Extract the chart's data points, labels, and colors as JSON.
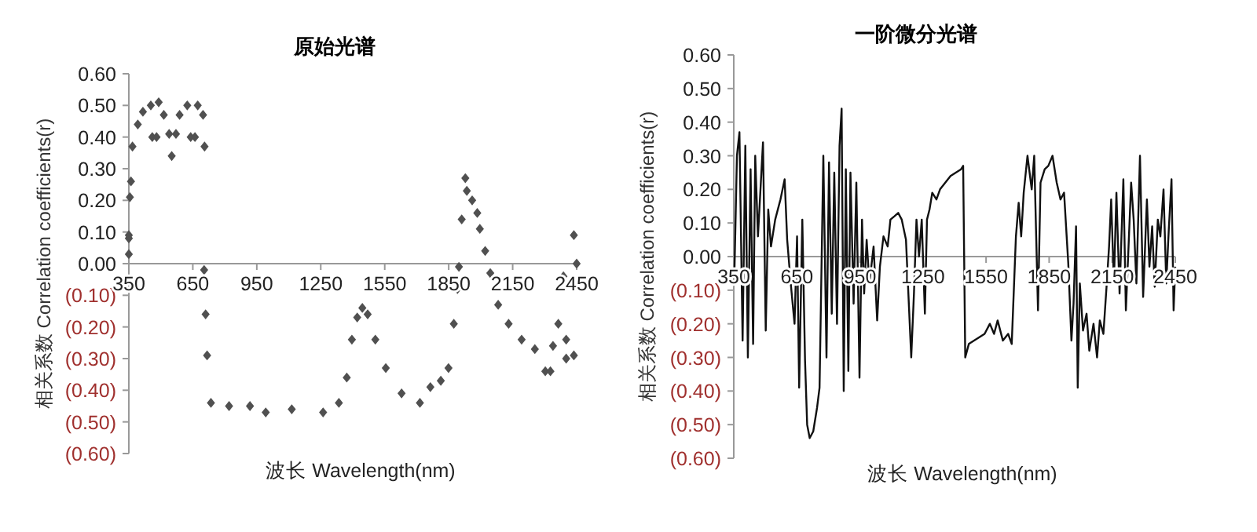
{
  "chart_data": [
    {
      "type": "scatter",
      "title": "原始光谱",
      "xlabel": "波长  Wavelength(nm)",
      "ylabel": "相关系数 Correlation coefficients(r)",
      "marker": "diamond",
      "xlim": [
        350,
        2450
      ],
      "xticks": [
        350,
        650,
        950,
        1250,
        1550,
        1850,
        2150,
        2450
      ],
      "ylim": [
        -0.6,
        0.6
      ],
      "yticks": [
        {
          "value": 0.6,
          "label": "0.60"
        },
        {
          "value": 0.5,
          "label": "0.50"
        },
        {
          "value": 0.4,
          "label": "0.40"
        },
        {
          "value": 0.3,
          "label": "0.30"
        },
        {
          "value": 0.2,
          "label": "0.20"
        },
        {
          "value": 0.1,
          "label": "0.10"
        },
        {
          "value": 0,
          "label": "0.00"
        },
        {
          "value": -0.1,
          "label": "(0.10)"
        },
        {
          "value": -0.2,
          "label": "(0.20)"
        },
        {
          "value": -0.3,
          "label": "(0.30)"
        },
        {
          "value": -0.4,
          "label": "(0.40)"
        },
        {
          "value": -0.5,
          "label": "(0.50)"
        },
        {
          "value": -0.6,
          "label": "(0.60)"
        }
      ],
      "series": [
        {
          "color": "#505050",
          "x": [
            350,
            350,
            350,
            355,
            360,
            367,
            392,
            416,
            453,
            490,
            514,
            539,
            551,
            571,
            588,
            624,
            673,
            698,
            705,
            460,
            480,
            640,
            660,
            703,
            710,
            717,
            735,
            820,
            918,
            992,
            1114,
            1261,
            1335,
            1372,
            1396,
            1421,
            1445,
            1470,
            1506,
            1555,
            1629,
            1715,
            1764,
            1813,
            1849,
            1874,
            1891,
            1898,
            1911,
            1928,
            1935,
            1960,
            1984,
            1996,
            2021,
            2045,
            2082,
            2131,
            2192,
            2254,
            2303,
            2327,
            2339,
            2364,
            2388,
            2401,
            2437,
            2450,
            2437,
            2401
          ],
          "values": [
            0.08,
            0.09,
            0.03,
            0.21,
            0.26,
            0.37,
            0.44,
            0.48,
            0.5,
            0.51,
            0.47,
            0.41,
            0.34,
            0.41,
            0.47,
            0.5,
            0.5,
            0.47,
            0.37,
            0.4,
            0.4,
            0.4,
            0.4,
            -0.02,
            -0.16,
            -0.29,
            -0.44,
            -0.45,
            -0.45,
            -0.47,
            -0.46,
            -0.47,
            -0.44,
            -0.36,
            -0.24,
            -0.17,
            -0.14,
            -0.16,
            -0.24,
            -0.33,
            -0.41,
            -0.44,
            -0.39,
            -0.37,
            -0.33,
            -0.19,
            -0.08,
            -0.01,
            0.14,
            0.27,
            0.23,
            0.2,
            0.16,
            0.11,
            0.04,
            -0.03,
            -0.13,
            -0.19,
            -0.24,
            -0.27,
            -0.34,
            -0.34,
            -0.26,
            -0.19,
            -0.04,
            -0.24,
            0.09,
            0.0,
            -0.29,
            -0.3
          ]
        }
      ]
    },
    {
      "type": "line",
      "title": "一阶微分光谱",
      "xlabel": "波长 Wavelength(nm)",
      "ylabel": "相关系数 Correlation coefficients(r)",
      "line_style": "solid",
      "xlim": [
        350,
        2450
      ],
      "xticks": [
        350,
        650,
        950,
        1250,
        1550,
        1850,
        2150,
        2450
      ],
      "ylim": [
        -0.6,
        0.6
      ],
      "yticks": [
        {
          "value": 0.6,
          "label": "0.60"
        },
        {
          "value": 0.5,
          "label": "0.50"
        },
        {
          "value": 0.4,
          "label": "0.40"
        },
        {
          "value": 0.3,
          "label": "0.30"
        },
        {
          "value": 0.2,
          "label": "0.20"
        },
        {
          "value": 0.1,
          "label": "0.10"
        },
        {
          "value": 0,
          "label": "0.00"
        },
        {
          "value": -0.1,
          "label": "(0.10)"
        },
        {
          "value": -0.2,
          "label": "(0.20)"
        },
        {
          "value": -0.3,
          "label": "(0.30)"
        },
        {
          "value": -0.4,
          "label": "(0.40)"
        },
        {
          "value": -0.5,
          "label": "(0.50)"
        },
        {
          "value": -0.6,
          "label": "(0.60)"
        }
      ],
      "series": [
        {
          "color": "#111111",
          "x": [
            352,
            365,
            377,
            392,
            405,
            417,
            430,
            442,
            452,
            465,
            477,
            489,
            502,
            514,
            527,
            547,
            572,
            592,
            604,
            621,
            639,
            651,
            661,
            676,
            689,
            699,
            711,
            728,
            746,
            758,
            776,
            791,
            803,
            816,
            828,
            841,
            853,
            863,
            873,
            883,
            895,
            905,
            920,
            933,
            948,
            960,
            970,
            982,
            995,
            1015,
            1032,
            1045,
            1062,
            1082,
            1095,
            1114,
            1132,
            1149,
            1169,
            1184,
            1194,
            1207,
            1219,
            1231,
            1244,
            1259,
            1269,
            1281,
            1294,
            1314,
            1331,
            1356,
            1381,
            1406,
            1431,
            1441,
            1451,
            1468,
            1493,
            1518,
            1543,
            1568,
            1588,
            1605,
            1630,
            1655,
            1672,
            1692,
            1705,
            1717,
            1729,
            1747,
            1767,
            1779,
            1797,
            1809,
            1829,
            1846,
            1866,
            1886,
            1904,
            1921,
            1941,
            1956,
            1966,
            1978,
            1986,
            1996,
            2011,
            2028,
            2041,
            2061,
            2078,
            2091,
            2108,
            2123,
            2135,
            2145,
            2158,
            2170,
            2185,
            2203,
            2215,
            2227,
            2240,
            2252,
            2265,
            2282,
            2297,
            2315,
            2327,
            2340,
            2352,
            2367,
            2379,
            2394,
            2407,
            2419,
            2432,
            2442,
            2450
          ],
          "values": [
            -0.08,
            0.3,
            0.37,
            -0.25,
            0.33,
            -0.3,
            0.26,
            -0.26,
            0.3,
            0.06,
            0.2,
            0.34,
            -0.22,
            0.14,
            0.03,
            0.11,
            0.17,
            0.23,
            0.05,
            -0.08,
            -0.2,
            0.06,
            -0.39,
            0.11,
            -0.31,
            -0.5,
            -0.54,
            -0.52,
            -0.45,
            -0.39,
            0.3,
            -0.3,
            0.28,
            -0.17,
            0.25,
            -0.2,
            0.33,
            0.44,
            -0.4,
            0.26,
            -0.34,
            0.25,
            -0.14,
            0.22,
            -0.36,
            0.11,
            -0.11,
            0.05,
            -0.08,
            0.03,
            -0.19,
            -0.03,
            0.06,
            0.03,
            0.11,
            0.12,
            0.13,
            0.11,
            0.05,
            -0.16,
            -0.3,
            -0.11,
            0.11,
            0.0,
            0.11,
            -0.17,
            0.11,
            0.14,
            0.19,
            0.17,
            0.2,
            0.22,
            0.24,
            0.25,
            0.26,
            0.27,
            -0.3,
            -0.26,
            -0.25,
            -0.24,
            -0.23,
            -0.2,
            -0.23,
            -0.19,
            -0.25,
            -0.23,
            -0.26,
            0.06,
            0.16,
            0.06,
            0.19,
            0.3,
            0.2,
            0.3,
            -0.16,
            0.22,
            0.26,
            0.27,
            0.3,
            0.22,
            0.17,
            0.19,
            -0.02,
            -0.25,
            -0.14,
            0.09,
            -0.39,
            -0.08,
            -0.22,
            -0.17,
            -0.28,
            -0.2,
            -0.3,
            -0.19,
            -0.23,
            -0.09,
            0.03,
            0.17,
            -0.08,
            0.19,
            -0.11,
            0.23,
            -0.16,
            0.02,
            0.22,
            0.11,
            -0.08,
            0.3,
            -0.12,
            0.17,
            -0.03,
            0.09,
            -0.09,
            0.11,
            0.06,
            0.2,
            -0.08,
            0.08,
            0.23,
            -0.16,
            -0.03
          ]
        }
      ]
    }
  ]
}
